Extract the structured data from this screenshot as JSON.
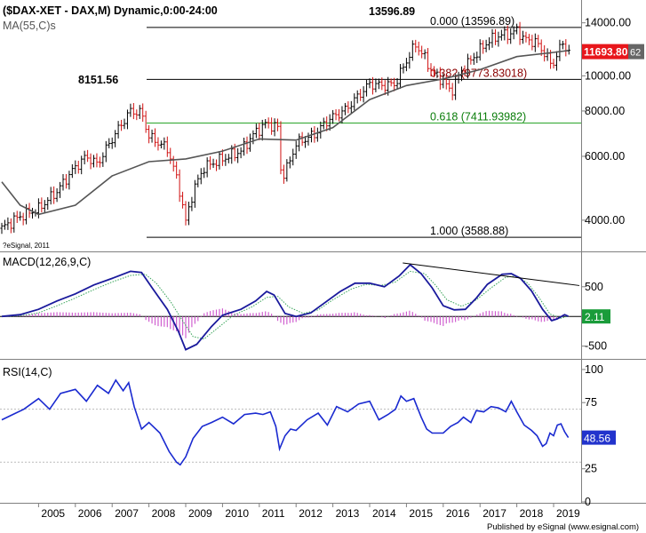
{
  "header": {
    "title": "($DAX-XET - DAX,M) Dynamic,0:00-24:00",
    "ma_label": "MA(55,C)s",
    "copyright": "?eSignal, 2011",
    "footer": "Published by eSignal (www.esignal.com)"
  },
  "annotations": {
    "high_label": "13596.89",
    "peak_2007_label": "8151.56",
    "fib_000": "0.000 (13596.89)",
    "fib_382": "0.382 (9773.83018)",
    "fib_618": "0.618 (7411.93982)",
    "fib_100": "1.000 (3588.88)"
  },
  "badges": {
    "price": "11693.80",
    "price_tail": "62",
    "macd": "2.11",
    "rsi": "48.56"
  },
  "colors": {
    "price_badge": "#e8161b",
    "macd_badge": "#1a9c3a",
    "rsi_badge": "#2233cc",
    "macd_line": "#1a1a9c",
    "macd_signal": "#3aa55a",
    "histogram": "#d060d0",
    "fib_382": "#8b0000",
    "fib_618": "#0a7d0a",
    "ma": "#555555",
    "rsi_line": "#1a2ad0"
  },
  "chart_data": [
    {
      "type": "ohlc",
      "panel": "price",
      "scale": "log",
      "ylim": [
        3300,
        16000
      ],
      "yticks": [
        4000,
        6000,
        8000,
        10000,
        14000
      ],
      "ytick_labels": [
        "4000.00",
        "6000.00",
        "8000.00",
        "10000.00",
        "14000.00"
      ],
      "x_years": [
        "2005",
        "2006",
        "2007",
        "2008",
        "2009",
        "2010",
        "2011",
        "2012",
        "2013",
        "2014",
        "2015",
        "2016",
        "2017",
        "2018",
        "2019"
      ],
      "close_series": [
        [
          2004.0,
          3800
        ],
        [
          2004.5,
          4100
        ],
        [
          2005.0,
          4300
        ],
        [
          2005.5,
          4800
        ],
        [
          2006.0,
          5600
        ],
        [
          2006.3,
          6000
        ],
        [
          2006.6,
          5700
        ],
        [
          2007.0,
          6700
        ],
        [
          2007.5,
          8000
        ],
        [
          2007.8,
          7900
        ],
        [
          2008.0,
          6800
        ],
        [
          2008.5,
          6300
        ],
        [
          2008.8,
          5000
        ],
        [
          2009.0,
          3950
        ],
        [
          2009.2,
          4800
        ],
        [
          2009.5,
          5600
        ],
        [
          2010.0,
          5900
        ],
        [
          2010.5,
          6200
        ],
        [
          2010.9,
          7000
        ],
        [
          2011.2,
          7400
        ],
        [
          2011.5,
          7200
        ],
        [
          2011.6,
          5200
        ],
        [
          2011.8,
          5700
        ],
        [
          2012.0,
          6500
        ],
        [
          2012.5,
          6900
        ],
        [
          2012.9,
          7600
        ],
        [
          2013.3,
          8000
        ],
        [
          2013.6,
          8600
        ],
        [
          2014.0,
          9500
        ],
        [
          2014.4,
          9400
        ],
        [
          2014.7,
          9500
        ],
        [
          2015.0,
          11000
        ],
        [
          2015.25,
          12200
        ],
        [
          2015.5,
          11200
        ],
        [
          2015.7,
          10200
        ],
        [
          2016.0,
          9700
        ],
        [
          2016.2,
          9000
        ],
        [
          2016.5,
          10300
        ],
        [
          2016.9,
          11500
        ],
        [
          2017.2,
          12400
        ],
        [
          2017.5,
          12900
        ],
        [
          2017.9,
          13100
        ],
        [
          2018.0,
          13400
        ],
        [
          2018.2,
          12600
        ],
        [
          2018.5,
          12400
        ],
        [
          2018.8,
          11400
        ],
        [
          2018.95,
          10600
        ],
        [
          2019.1,
          11500
        ],
        [
          2019.25,
          12300
        ],
        [
          2019.4,
          11700
        ]
      ],
      "ma_series": [
        [
          2004.0,
          5100
        ],
        [
          2004.5,
          4400
        ],
        [
          2005.0,
          4150
        ],
        [
          2006.0,
          4400
        ],
        [
          2007.0,
          5300
        ],
        [
          2008.0,
          5800
        ],
        [
          2009.0,
          5900
        ],
        [
          2010.0,
          6200
        ],
        [
          2011.0,
          6700
        ],
        [
          2012.0,
          6650
        ],
        [
          2013.0,
          7200
        ],
        [
          2014.0,
          8600
        ],
        [
          2015.0,
          9400
        ],
        [
          2016.0,
          9800
        ],
        [
          2017.0,
          10400
        ],
        [
          2018.0,
          11300
        ],
        [
          2019.0,
          11600
        ],
        [
          2019.4,
          11750
        ]
      ],
      "fib_levels": [
        13596.89,
        9773.83018,
        7411.93982,
        3588.88
      ],
      "last_price": 11693.8
    },
    {
      "type": "line",
      "panel": "macd",
      "title": "MACD(12,26,9,C)",
      "ylim": [
        -700,
        1050
      ],
      "yticks": [
        500,
        -500
      ],
      "ytick_labels": [
        "500",
        "-500"
      ],
      "macd_series": [
        [
          2004.0,
          0
        ],
        [
          2004.5,
          30
        ],
        [
          2005.0,
          120
        ],
        [
          2005.5,
          260
        ],
        [
          2006.0,
          380
        ],
        [
          2006.5,
          530
        ],
        [
          2007.0,
          640
        ],
        [
          2007.5,
          760
        ],
        [
          2007.8,
          740
        ],
        [
          2008.1,
          470
        ],
        [
          2008.5,
          120
        ],
        [
          2008.8,
          -250
        ],
        [
          2009.0,
          -560
        ],
        [
          2009.3,
          -470
        ],
        [
          2009.7,
          -170
        ],
        [
          2010.0,
          20
        ],
        [
          2010.5,
          120
        ],
        [
          2010.9,
          260
        ],
        [
          2011.2,
          420
        ],
        [
          2011.4,
          360
        ],
        [
          2011.7,
          50
        ],
        [
          2012.0,
          0
        ],
        [
          2012.4,
          60
        ],
        [
          2012.8,
          240
        ],
        [
          2013.2,
          420
        ],
        [
          2013.6,
          560
        ],
        [
          2014.0,
          560
        ],
        [
          2014.4,
          500
        ],
        [
          2014.8,
          680
        ],
        [
          2015.1,
          870
        ],
        [
          2015.4,
          720
        ],
        [
          2015.7,
          480
        ],
        [
          2016.0,
          180
        ],
        [
          2016.3,
          110
        ],
        [
          2016.6,
          120
        ],
        [
          2016.9,
          310
        ],
        [
          2017.2,
          540
        ],
        [
          2017.6,
          710
        ],
        [
          2017.85,
          720
        ],
        [
          2018.1,
          640
        ],
        [
          2018.4,
          430
        ],
        [
          2018.7,
          120
        ],
        [
          2018.95,
          -70
        ],
        [
          2019.1,
          -40
        ],
        [
          2019.3,
          30
        ],
        [
          2019.4,
          2.11
        ]
      ],
      "signal_series": [
        [
          2004.0,
          0
        ],
        [
          2004.5,
          10
        ],
        [
          2005.0,
          60
        ],
        [
          2005.5,
          180
        ],
        [
          2006.0,
          310
        ],
        [
          2006.5,
          450
        ],
        [
          2007.0,
          580
        ],
        [
          2007.5,
          690
        ],
        [
          2007.9,
          710
        ],
        [
          2008.2,
          560
        ],
        [
          2008.6,
          240
        ],
        [
          2008.9,
          -60
        ],
        [
          2009.2,
          -340
        ],
        [
          2009.5,
          -380
        ],
        [
          2009.9,
          -180
        ],
        [
          2010.3,
          20
        ],
        [
          2010.8,
          160
        ],
        [
          2011.2,
          320
        ],
        [
          2011.5,
          340
        ],
        [
          2011.8,
          160
        ],
        [
          2012.2,
          50
        ],
        [
          2012.6,
          110
        ],
        [
          2013.0,
          280
        ],
        [
          2013.5,
          460
        ],
        [
          2013.9,
          540
        ],
        [
          2014.3,
          520
        ],
        [
          2014.7,
          580
        ],
        [
          2015.1,
          760
        ],
        [
          2015.5,
          720
        ],
        [
          2015.8,
          520
        ],
        [
          2016.1,
          280
        ],
        [
          2016.5,
          170
        ],
        [
          2016.9,
          280
        ],
        [
          2017.3,
          480
        ],
        [
          2017.7,
          660
        ],
        [
          2018.0,
          680
        ],
        [
          2018.3,
          560
        ],
        [
          2018.6,
          320
        ],
        [
          2018.9,
          40
        ],
        [
          2019.2,
          -30
        ],
        [
          2019.4,
          5
        ]
      ],
      "trendline": [
        [
          2014.9,
          900
        ],
        [
          2019.7,
          520
        ]
      ],
      "last_value": 2.11
    },
    {
      "type": "line",
      "panel": "rsi",
      "title": "RSI(14,C)",
      "ylim": [
        0,
        106
      ],
      "yticks": [
        100,
        75,
        50,
        25,
        0
      ],
      "ytick_labels": [
        "100",
        "75",
        "50",
        "25",
        "0"
      ],
      "series": [
        [
          2004.0,
          62
        ],
        [
          2004.3,
          66
        ],
        [
          2004.6,
          70
        ],
        [
          2005.0,
          78
        ],
        [
          2005.3,
          70
        ],
        [
          2005.6,
          82
        ],
        [
          2006.0,
          85
        ],
        [
          2006.3,
          76
        ],
        [
          2006.6,
          88
        ],
        [
          2006.9,
          82
        ],
        [
          2007.1,
          92
        ],
        [
          2007.3,
          84
        ],
        [
          2007.45,
          90
        ],
        [
          2007.6,
          72
        ],
        [
          2007.8,
          55
        ],
        [
          2008.0,
          60
        ],
        [
          2008.3,
          52
        ],
        [
          2008.55,
          38
        ],
        [
          2008.75,
          30
        ],
        [
          2008.85,
          28
        ],
        [
          2009.0,
          34
        ],
        [
          2009.2,
          48
        ],
        [
          2009.45,
          57
        ],
        [
          2009.7,
          60
        ],
        [
          2010.0,
          64
        ],
        [
          2010.3,
          59
        ],
        [
          2010.6,
          66
        ],
        [
          2010.9,
          67
        ],
        [
          2011.1,
          66
        ],
        [
          2011.3,
          68
        ],
        [
          2011.45,
          57
        ],
        [
          2011.55,
          40
        ],
        [
          2011.7,
          50
        ],
        [
          2011.85,
          55
        ],
        [
          2012.0,
          54
        ],
        [
          2012.3,
          62
        ],
        [
          2012.6,
          67
        ],
        [
          2012.85,
          58
        ],
        [
          2013.1,
          72
        ],
        [
          2013.4,
          68
        ],
        [
          2013.7,
          74
        ],
        [
          2014.0,
          76
        ],
        [
          2014.25,
          62
        ],
        [
          2014.5,
          66
        ],
        [
          2014.7,
          70
        ],
        [
          2014.85,
          80
        ],
        [
          2015.0,
          76
        ],
        [
          2015.2,
          78
        ],
        [
          2015.4,
          64
        ],
        [
          2015.55,
          55
        ],
        [
          2015.7,
          52
        ],
        [
          2016.0,
          52
        ],
        [
          2016.2,
          57
        ],
        [
          2016.4,
          60
        ],
        [
          2016.55,
          64
        ],
        [
          2016.75,
          60
        ],
        [
          2016.9,
          69
        ],
        [
          2017.1,
          68
        ],
        [
          2017.3,
          72
        ],
        [
          2017.5,
          71
        ],
        [
          2017.7,
          68
        ],
        [
          2017.85,
          76
        ],
        [
          2018.0,
          68
        ],
        [
          2018.2,
          58
        ],
        [
          2018.4,
          54
        ],
        [
          2018.55,
          50
        ],
        [
          2018.7,
          42
        ],
        [
          2018.8,
          44
        ],
        [
          2018.9,
          52
        ],
        [
          2019.0,
          50
        ],
        [
          2019.1,
          58
        ],
        [
          2019.2,
          59
        ],
        [
          2019.3,
          53
        ],
        [
          2019.4,
          48.56
        ]
      ],
      "last_value": 48.56
    }
  ]
}
